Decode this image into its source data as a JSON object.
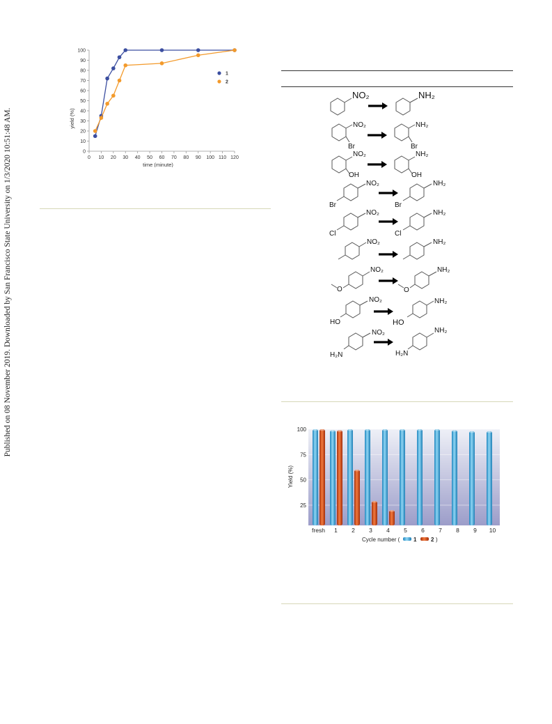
{
  "side_note": "Published on 08 November 2019. Downloaded by San Francisco State University on 1/3/2020 10:51:48 AM.",
  "chart_data": [
    {
      "type": "line",
      "title": "",
      "xlabel": "time (minute)",
      "ylabel": "yield (%)",
      "xlim": [
        0,
        120
      ],
      "ylim": [
        0,
        100
      ],
      "xticks": [
        0,
        10,
        20,
        30,
        40,
        50,
        60,
        70,
        80,
        90,
        100,
        110,
        120
      ],
      "yticks": [
        0,
        10,
        20,
        30,
        40,
        50,
        60,
        70,
        80,
        90,
        100
      ],
      "legend_position": "right-middle",
      "series": [
        {
          "name": "1",
          "color": "#3b4ea0",
          "x": [
            5,
            10,
            15,
            20,
            25,
            30,
            60,
            90,
            120
          ],
          "y": [
            15,
            35,
            72,
            82,
            93,
            100,
            100,
            100,
            100
          ]
        },
        {
          "name": "2",
          "color": "#f39a2b",
          "x": [
            5,
            10,
            15,
            20,
            25,
            30,
            60,
            90,
            120
          ],
          "y": [
            20,
            33,
            47,
            55,
            70,
            85,
            87,
            95,
            100
          ]
        }
      ]
    },
    {
      "type": "bar",
      "title": "",
      "xlabel": "Cycle number (",
      "xlabel_end": ")",
      "ylabel": "Yield (%)",
      "ylim": [
        5,
        100
      ],
      "yticks": [
        25,
        50,
        75,
        100
      ],
      "categories": [
        "fresh",
        "1",
        "2",
        "3",
        "4",
        "5",
        "6",
        "7",
        "8",
        "9",
        "10"
      ],
      "legend_position": "bottom",
      "series": [
        {
          "name": "1",
          "color": "#3fa9dc",
          "values": [
            100,
            99,
            100,
            100,
            100,
            100,
            100,
            100,
            99,
            98,
            98
          ]
        },
        {
          "name": "2",
          "color": "#e0541b",
          "values": [
            100,
            99,
            60,
            29,
            20,
            null,
            null,
            null,
            null,
            null,
            null
          ]
        }
      ]
    }
  ],
  "schemes": {
    "substituents": {
      "nitro": "NO₂",
      "amine": "NH₂",
      "amine_group": "H₂N",
      "bromo": "Br",
      "chloro": "Cl",
      "hydroxyl": "OH",
      "hydroxy_para": "HO",
      "methoxy_o": "O"
    }
  },
  "colors": {
    "rule": "#d6d7b7",
    "dark_rule": "#333333"
  }
}
